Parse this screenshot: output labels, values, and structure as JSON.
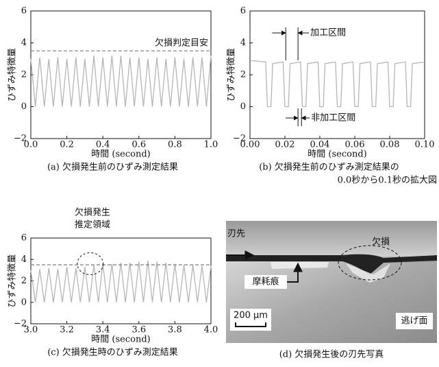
{
  "chart_data": [
    {
      "type": "line",
      "x_label": "時間 (second)",
      "y_label": "ひずみ特徴量",
      "caption": [
        "(a) 欠損発生前のひずみ測定結果"
      ],
      "x": [
        0,
        0.025,
        0.05,
        0.075,
        0.1,
        0.125,
        0.15,
        0.175,
        0.2,
        0.225,
        0.25,
        0.275,
        0.3,
        0.325,
        0.35,
        0.375,
        0.4,
        0.425,
        0.45,
        0.475,
        0.5,
        0.525,
        0.55,
        0.575,
        0.6,
        0.625,
        0.65,
        0.675,
        0.7,
        0.725,
        0.75,
        0.775,
        0.8,
        0.825,
        0.85,
        0.875,
        0.9,
        0.925,
        0.95,
        0.975,
        1.0
      ],
      "values": [
        3.0,
        0,
        3.1,
        0,
        3.0,
        0,
        3.1,
        0,
        3.0,
        0,
        3.1,
        0,
        3.0,
        0,
        3.2,
        0,
        3.1,
        0,
        3.2,
        0,
        3.2,
        0,
        3.1,
        0,
        3.1,
        0,
        3.0,
        0,
        3.1,
        0,
        3.0,
        0,
        3.1,
        0,
        3.0,
        0,
        3.1,
        0,
        3.1,
        0,
        3.2
      ],
      "color": "#b5b5b5",
      "threshold": 3.5,
      "threshold_label": "欠損判定目安",
      "xlim": [
        0,
        1
      ],
      "xticks": [
        {
          "value": 0,
          "label": "0.0"
        },
        0.2,
        0.4,
        0.6,
        0.8,
        {
          "value": 1,
          "label": "1.0"
        }
      ],
      "ylim": [
        -2,
        6
      ],
      "yticks": [
        {
          "value": -2,
          "label": "−2"
        },
        0,
        2,
        4,
        6
      ]
    },
    {
      "type": "line",
      "x_label": "時間 (second)",
      "y_label": "ひずみ特徴量",
      "caption": [
        "(b) 欠損発生前のひずみ測定結果の",
        "0.0秒から0.1秒の拡大図"
      ],
      "x": [
        0,
        0.009,
        0.01,
        0.012,
        0.013,
        0.019,
        0.02,
        0.022,
        0.023,
        0.029,
        0.03,
        0.032,
        0.033,
        0.039,
        0.04,
        0.042,
        0.043,
        0.049,
        0.05,
        0.052,
        0.053,
        0.059,
        0.06,
        0.062,
        0.063,
        0.069,
        0.07,
        0.072,
        0.073,
        0.079,
        0.08,
        0.082,
        0.083,
        0.089,
        0.09,
        0.092,
        0.093,
        0.1
      ],
      "values": [
        2.9,
        2.8,
        0,
        0,
        2.7,
        2.8,
        0,
        0,
        2.7,
        2.8,
        0,
        0,
        2.7,
        2.8,
        0,
        0,
        2.7,
        2.8,
        0,
        0,
        2.7,
        2.8,
        0,
        0,
        2.7,
        2.8,
        0,
        0,
        2.7,
        2.8,
        0,
        0,
        2.7,
        2.8,
        0,
        0,
        2.7,
        2.8
      ],
      "color": "#b5b5b5",
      "annotations": [
        "加工区間",
        "非加工区間"
      ],
      "xlim": [
        0,
        0.1
      ],
      "xticks": [
        {
          "value": 0,
          "label": "0.00"
        },
        {
          "value": 0.02,
          "label": "0.02"
        },
        {
          "value": 0.04,
          "label": "0.04"
        },
        {
          "value": 0.06,
          "label": "0.06"
        },
        {
          "value": 0.08,
          "label": "0.08"
        },
        {
          "value": 0.1,
          "label": "0.10"
        }
      ],
      "ylim": [
        -2,
        6
      ],
      "yticks": [
        {
          "value": -2,
          "label": "−2"
        },
        0,
        2,
        4,
        6
      ]
    },
    {
      "type": "line",
      "x_label": "時間 (second)",
      "y_label": "ひずみ特徴量",
      "caption": [
        "(c) 欠損発生時のひずみ測定結果"
      ],
      "x": [
        3.0,
        3.025,
        3.05,
        3.075,
        3.1,
        3.125,
        3.15,
        3.175,
        3.2,
        3.225,
        3.25,
        3.275,
        3.3,
        3.325,
        3.35,
        3.375,
        3.4,
        3.425,
        3.45,
        3.475,
        3.5,
        3.525,
        3.55,
        3.575,
        3.6,
        3.625,
        3.65,
        3.675,
        3.7,
        3.725,
        3.75,
        3.775,
        3.8,
        3.825,
        3.85,
        3.875,
        3.9,
        3.925,
        3.95,
        3.975,
        4.0
      ],
      "values": [
        3.0,
        0,
        3.1,
        0,
        3.2,
        0,
        3.1,
        0,
        3.3,
        0,
        3.2,
        0,
        3.3,
        0,
        3.5,
        0,
        3.6,
        0,
        3.6,
        0,
        3.7,
        0,
        3.7,
        0,
        3.8,
        0,
        3.9,
        0,
        3.8,
        0,
        3.7,
        0,
        3.6,
        0,
        3.5,
        0,
        3.5,
        0,
        3.4,
        0,
        3.4
      ],
      "color": "#b5b5b5",
      "threshold": 3.5,
      "annotations": [
        "欠損発生",
        "推定領域"
      ],
      "xlim": [
        3,
        4
      ],
      "xticks": [
        {
          "value": 3,
          "label": "3.0"
        },
        3.2,
        3.4,
        3.6,
        3.8,
        {
          "value": 4,
          "label": "4.0"
        }
      ],
      "ylim": [
        -2,
        6
      ],
      "yticks": [
        {
          "value": -2,
          "label": "−2"
        },
        0,
        2,
        4,
        6
      ]
    }
  ],
  "photo": {
    "labels": {
      "edge": "刃先",
      "defect": "欠損",
      "wear": "摩耗痕",
      "scale": "200 μm",
      "face": "逃げ面"
    },
    "caption": "(d) 欠損発生後の刃先写真"
  }
}
